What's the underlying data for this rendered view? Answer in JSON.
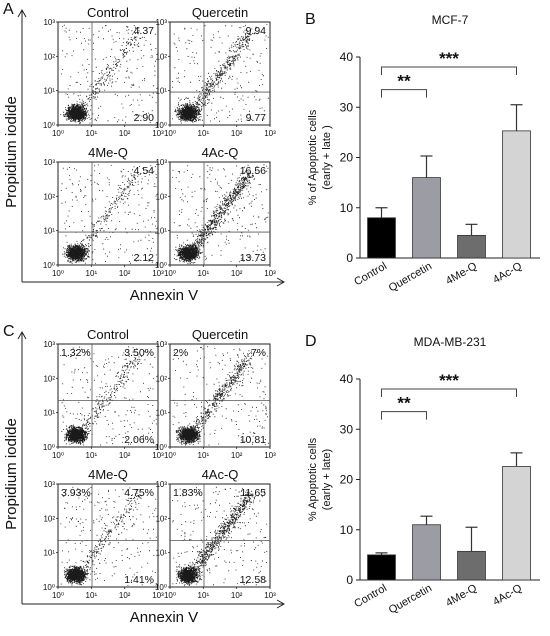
{
  "panel_letters": [
    "A",
    "B",
    "C",
    "D"
  ],
  "flow_panels": [
    {
      "letter": "A",
      "ylabel": "Propidium iodide",
      "xlabel": "Annexin V",
      "ticks": [
        "10⁰",
        "10¹",
        "10²",
        "10³"
      ],
      "quadrant_style": "mid",
      "plots": [
        {
          "title": "Control",
          "ur": "4.37",
          "lr": "2.90",
          "ul": "",
          "seed": 11,
          "pattern": "low"
        },
        {
          "title": "Quercetin",
          "ur": "9.94",
          "lr": "9.77",
          "ul": "",
          "seed": 23,
          "pattern": "medium"
        },
        {
          "title": "4Me-Q",
          "ur": "4.54",
          "lr": "2.12",
          "ul": "",
          "seed": 37,
          "pattern": "low"
        },
        {
          "title": "4Ac-Q",
          "ur": "16.56",
          "lr": "13.73",
          "ul": "",
          "seed": 41,
          "pattern": "high"
        }
      ]
    },
    {
      "letter": "C",
      "ylabel": "Propidium iodide",
      "xlabel": "Annexin V",
      "ticks": [
        "10⁰",
        "10¹",
        "10²",
        "10³"
      ],
      "quadrant_style": "low",
      "plots": [
        {
          "title": "Control",
          "ur": "3.50%",
          "lr": "2.06%",
          "ul": "1.32%",
          "seed": 53,
          "pattern": "low"
        },
        {
          "title": "Quercetin",
          "ur": "7%",
          "lr": "10.81",
          "ul": "2%",
          "seed": 67,
          "pattern": "medium"
        },
        {
          "title": "4Me-Q",
          "ur": "4.75%",
          "lr": "1.41%",
          "ul": "3.93%",
          "seed": 71,
          "pattern": "low"
        },
        {
          "title": "4Ac-Q",
          "ur": "11.65",
          "lr": "12.58",
          "ul": "1.83%",
          "seed": 89,
          "pattern": "high"
        }
      ]
    }
  ],
  "chart_data": [
    {
      "panel": "B",
      "type": "bar",
      "title": "MCF-7",
      "ylabel": "% of Apoptotic cells",
      "ylabel2": "(early + late )",
      "categories": [
        "Control",
        "Quercetin",
        "4Me-Q",
        "4Ac-Q"
      ],
      "values": [
        8,
        16,
        4.5,
        25.3
      ],
      "errors": [
        2,
        4.3,
        2.2,
        5.2
      ],
      "colors": [
        "#000000",
        "#9c9ca4",
        "#6d6d6d",
        "#d4d4d4"
      ],
      "ylim": [
        0,
        40
      ],
      "yticks": [
        0,
        10,
        20,
        30,
        40
      ],
      "significance": [
        {
          "from": 0,
          "to": 1,
          "label": "**"
        },
        {
          "from": 0,
          "to": 3,
          "label": "***"
        }
      ]
    },
    {
      "panel": "D",
      "type": "bar",
      "title": "MDA-MB-231",
      "ylabel": "% Apoptotic cells",
      "ylabel2": "(early + late)",
      "categories": [
        "Control",
        "Quercetin",
        "4Me-Q",
        "4Ac-Q"
      ],
      "values": [
        5,
        11,
        5.7,
        22.6
      ],
      "errors": [
        0.4,
        1.7,
        4.8,
        2.7
      ],
      "colors": [
        "#000000",
        "#9c9ca4",
        "#6d6d6d",
        "#d4d4d4"
      ],
      "ylim": [
        0,
        40
      ],
      "yticks": [
        0,
        10,
        20,
        30,
        40
      ],
      "significance": [
        {
          "from": 0,
          "to": 1,
          "label": "**"
        },
        {
          "from": 0,
          "to": 3,
          "label": "***"
        }
      ]
    }
  ]
}
